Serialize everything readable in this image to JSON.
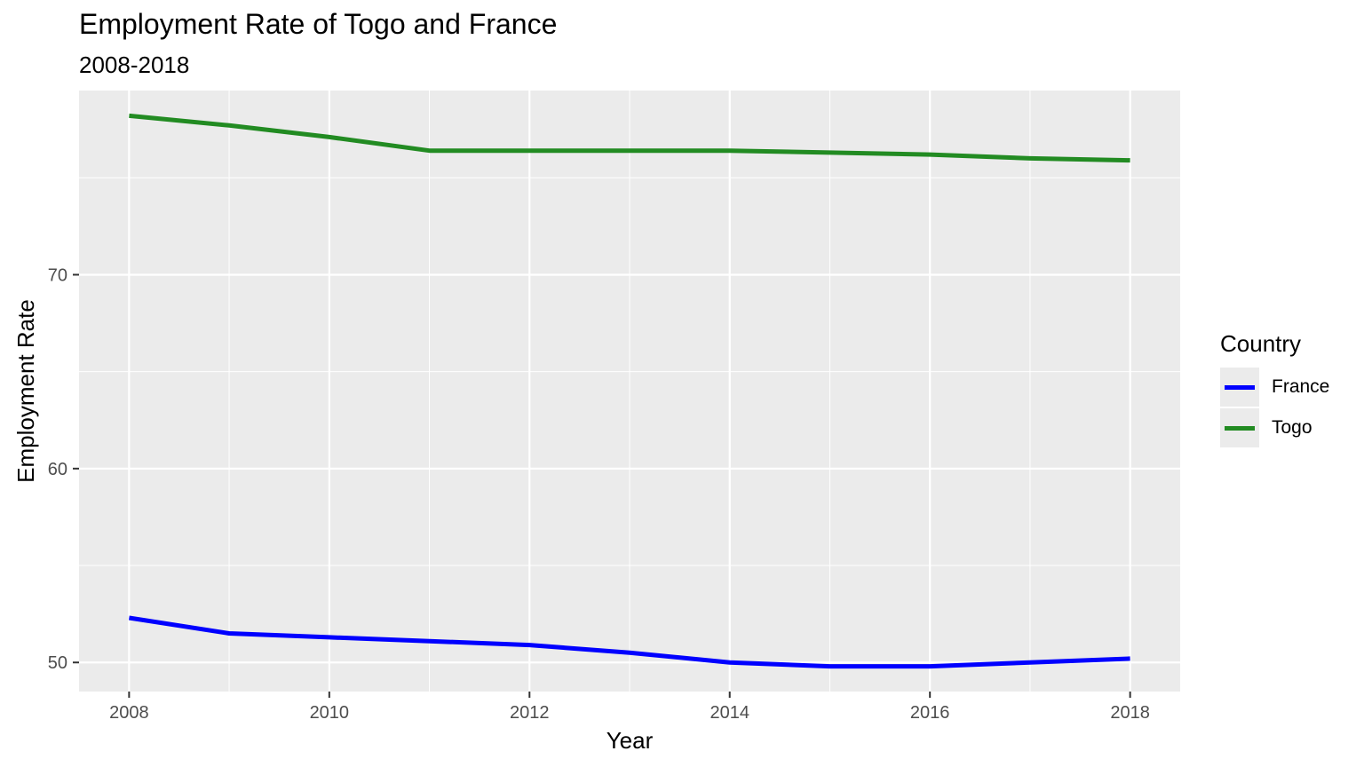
{
  "chart_data": {
    "type": "line",
    "title": "Employment Rate of Togo and France",
    "subtitle": "2008-2018",
    "xlabel": "Year",
    "ylabel": "Employment Rate",
    "x": [
      2008,
      2009,
      2010,
      2011,
      2012,
      2013,
      2014,
      2015,
      2016,
      2017,
      2018
    ],
    "xticks": [
      2008,
      2010,
      2012,
      2014,
      2016,
      2018
    ],
    "yticks": [
      50,
      60,
      70
    ],
    "xlim": [
      2007.5,
      2018.5
    ],
    "ylim": [
      48.5,
      79.5
    ],
    "grid": true,
    "legend_position": "right",
    "legend_title": "Country",
    "series": [
      {
        "name": "France",
        "color": "#0000ff",
        "values": [
          52.3,
          51.5,
          51.3,
          51.1,
          50.9,
          50.5,
          50.0,
          49.8,
          49.8,
          50.0,
          50.2
        ]
      },
      {
        "name": "Togo",
        "color": "#228b22",
        "values": [
          78.2,
          77.7,
          77.1,
          76.4,
          76.4,
          76.4,
          76.4,
          76.3,
          76.2,
          76.0,
          75.9
        ]
      }
    ]
  }
}
